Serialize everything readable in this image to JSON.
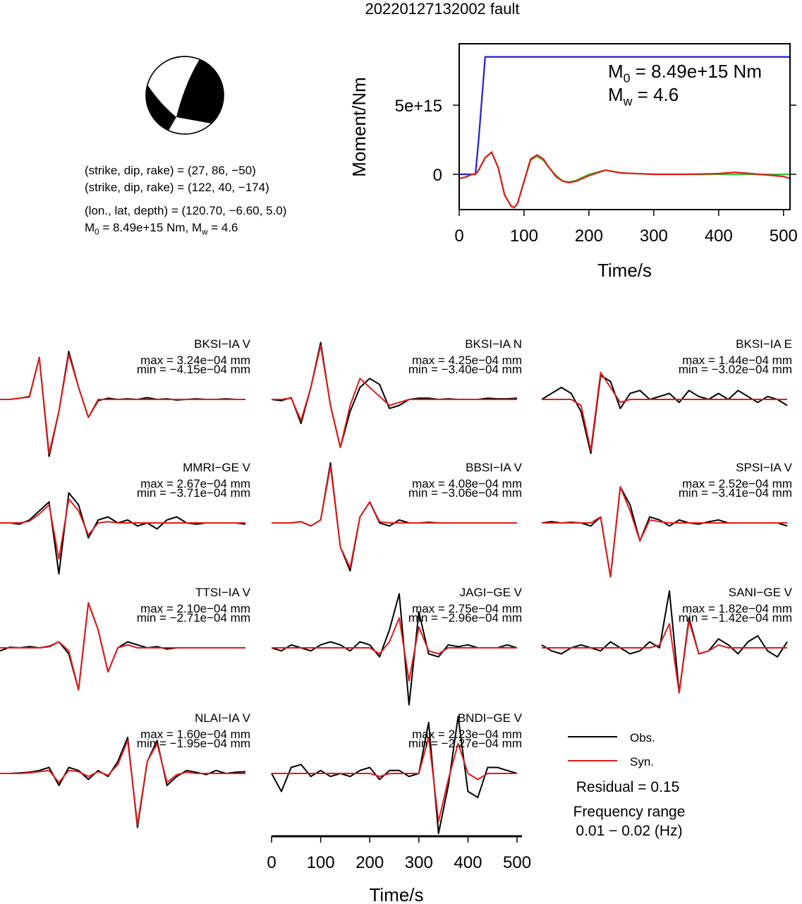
{
  "title": "20220127132002 fault",
  "mechanism": {
    "lines": [
      [
        "(strike, dip, rake) = (27, 86, −50)"
      ],
      [
        "(strike, dip, rake) = (122, 40, −174)"
      ],
      [
        "(lon., lat, depth) = (120.70, −6.60, 5.0)"
      ],
      [
        "M",
        "0",
        " = 8.49e+15 Nm, M",
        "w",
        " = 4.6"
      ]
    ]
  },
  "chart_data": [
    {
      "type": "line",
      "xlabel": "Time/s",
      "ylabel": "Moment/Nm",
      "annotations": [
        [
          "M",
          "0",
          " = 8.49e+15 Nm"
        ],
        [
          "M",
          "w",
          " = 4.6"
        ]
      ],
      "xlim": [
        0,
        510
      ],
      "ylim": [
        -2550000000000000.0,
        9440000000000000.0
      ],
      "xticks": [
        0,
        100,
        200,
        300,
        400,
        500
      ],
      "yticks": [
        0,
        {
          "value": 5000000000000000.0,
          "label": "5e+15"
        }
      ],
      "x": [
        0,
        10,
        20,
        25,
        30,
        40,
        50,
        60,
        70,
        80,
        85,
        90,
        100,
        110,
        120,
        130,
        140,
        150,
        160,
        170,
        180,
        200,
        225,
        250,
        300,
        350,
        400,
        425,
        450,
        500,
        510
      ],
      "series": [
        {
          "color": "#1f1fd6",
          "values": [
            0,
            0,
            0,
            0,
            2500000000000000.0,
            8490000000000000.0,
            8490000000000000.0,
            8490000000000000.0,
            8490000000000000.0,
            8490000000000000.0,
            8490000000000000.0,
            8490000000000000.0,
            8490000000000000.0,
            8490000000000000.0,
            8490000000000000.0,
            8490000000000000.0,
            8490000000000000.0,
            8490000000000000.0,
            8490000000000000.0,
            8490000000000000.0,
            8490000000000000.0,
            8490000000000000.0,
            8490000000000000.0,
            8490000000000000.0,
            8490000000000000.0,
            8490000000000000.0,
            8490000000000000.0,
            8490000000000000.0,
            8490000000000000.0,
            8490000000000000.0,
            8490000000000000.0
          ]
        },
        {
          "color": "#33cc33",
          "values": [
            -300000000000000.0,
            -200000000000000.0,
            0,
            0,
            300000000000000.0,
            1200000000000000.0,
            1600000000000000.0,
            500000000000000.0,
            -1500000000000000.0,
            -2300000000000000.0,
            -2400000000000000.0,
            -2100000000000000.0,
            -500000000000000.0,
            1000000000000000.0,
            1300000000000000.0,
            1000000000000000.0,
            400000000000000.0,
            -100000000000000.0,
            -500000000000000.0,
            -550000000000000.0,
            -450000000000000.0,
            0,
            300000000000000.0,
            100000000000000.0,
            0,
            0,
            0,
            0,
            0,
            0,
            0
          ]
        },
        {
          "color": "#e01b1b",
          "values": [
            -300000000000000.0,
            -200000000000000.0,
            0,
            0,
            300000000000000.0,
            1200000000000000.0,
            1600000000000000.0,
            500000000000000.0,
            -1500000000000000.0,
            -2300000000000000.0,
            -2400000000000000.0,
            -2100000000000000.0,
            -500000000000000.0,
            1100000000000000.0,
            1400000000000000.0,
            1100000000000000.0,
            400000000000000.0,
            -200000000000000.0,
            -500000000000000.0,
            -600000000000000.0,
            -500000000000000.0,
            -100000000000000.0,
            300000000000000.0,
            100000000000000.0,
            0,
            0,
            50000000000000.0,
            150000000000000.0,
            50000000000000.0,
            -150000000000000.0,
            -300000000000000.0
          ]
        }
      ]
    },
    {
      "type": "waveform",
      "xlabel": "Time/s",
      "xlim": [
        0,
        510
      ],
      "xticks": [
        0,
        100,
        200,
        300,
        400,
        500
      ],
      "time": [
        0,
        20,
        40,
        60,
        80,
        100,
        120,
        140,
        160,
        180,
        200,
        220,
        240,
        260,
        280,
        300,
        320,
        340,
        360,
        380,
        400,
        420,
        440,
        460,
        480,
        500
      ],
      "legend": [
        {
          "name": "Obs.",
          "color": "#000000"
        },
        {
          "name": "Syn.",
          "color": "#e01b1b"
        }
      ],
      "residual": "Residual = 0.15",
      "frequency": [
        "Frequency range",
        "0.01 − 0.02 (Hz)"
      ],
      "stations": [
        {
          "name": "BKSI−IA V",
          "max": "max = 3.24e−04 mm",
          "min": "min = −4.15e−04 mm",
          "obs": [
            0,
            0,
            0.02,
            0.05,
            0.7,
            -0.95,
            -0.2,
            0.8,
            0.2,
            -0.3,
            -0.02,
            0.02,
            0,
            0.01,
            0,
            0.03,
            0,
            0.01,
            -0.01,
            0,
            0.01,
            0,
            0,
            0.01,
            0,
            0
          ],
          "syn": [
            0,
            0,
            0.02,
            0.04,
            0.7,
            -0.9,
            -0.2,
            0.75,
            0.2,
            -0.3,
            0,
            0,
            0,
            0,
            0,
            0,
            0,
            0,
            0,
            0,
            0,
            0,
            0,
            0,
            0,
            0
          ]
        },
        {
          "name": "BKSI−IA N",
          "max": "max = 4.25e−04 mm",
          "min": "min = −3.40e−04 mm",
          "obs": [
            0,
            -0.02,
            0.03,
            -0.4,
            0.2,
            0.95,
            -0.1,
            -0.8,
            -0.2,
            0.2,
            0.35,
            0.25,
            -0.15,
            -0.1,
            0,
            0.02,
            0.02,
            0,
            0.01,
            0,
            0,
            0,
            0.02,
            0.01,
            0.01,
            0.02
          ],
          "syn": [
            0,
            0,
            0.02,
            -0.35,
            0.2,
            0.9,
            -0.1,
            -0.8,
            -0.1,
            0.35,
            0.2,
            0.05,
            -0.1,
            -0.05,
            0,
            0,
            0,
            0,
            0,
            0,
            0,
            0,
            0,
            0,
            0,
            0
          ]
        },
        {
          "name": "BKSI−IA E",
          "max": "max = 1.44e−04 mm",
          "min": "min = −3.02e−04 mm",
          "obs": [
            0,
            0.1,
            0.2,
            0.1,
            -0.2,
            -0.9,
            0.4,
            0.3,
            -0.15,
            0.1,
            0.15,
            0,
            0.05,
            0.1,
            -0.05,
            0.15,
            0.05,
            0,
            0.1,
            0,
            0.15,
            0.05,
            -0.05,
            0.05,
            0,
            -0.1
          ],
          "syn": [
            0,
            0,
            0,
            0,
            -0.1,
            -0.85,
            0.45,
            0.2,
            -0.05,
            0,
            0,
            0,
            0,
            0,
            0,
            0,
            0,
            0,
            0,
            0,
            0,
            0,
            0,
            0,
            0,
            0
          ]
        },
        {
          "name": "MMRI−GE V",
          "max": "max = 2.67e−04 mm",
          "min": "min = −3.71e−04 mm",
          "obs": [
            0,
            0,
            -0.02,
            0.05,
            0.2,
            0.35,
            -0.85,
            0.5,
            0.3,
            -0.25,
            0.05,
            0.1,
            0,
            0.05,
            -0.05,
            0,
            -0.1,
            0.05,
            0.1,
            0,
            -0.02,
            0,
            0,
            0,
            0,
            -0.02
          ],
          "syn": [
            0,
            0,
            0,
            0.03,
            0.15,
            0.3,
            -0.6,
            0.4,
            0.2,
            -0.2,
            0,
            0.02,
            0,
            0,
            0,
            0,
            0,
            0,
            0,
            0,
            0,
            0,
            0,
            0,
            0,
            0
          ]
        },
        {
          "name": "BBSI−IA V",
          "max": "max = 4.08e−04 mm",
          "min": "min = −3.06e−04 mm",
          "obs": [
            0,
            0,
            0,
            0.02,
            -0.05,
            0.05,
            1,
            -0.4,
            -0.8,
            0.1,
            0.35,
            0,
            -0.05,
            0.05,
            0,
            0,
            0.01,
            0,
            0,
            0,
            0,
            0,
            0,
            0,
            0,
            0
          ],
          "syn": [
            0,
            0,
            0,
            0.02,
            -0.05,
            0.05,
            0.95,
            -0.4,
            -0.75,
            0.1,
            0.35,
            0.02,
            0,
            0,
            0,
            0,
            0,
            0,
            0,
            0,
            0,
            0,
            0,
            0,
            0,
            0
          ]
        },
        {
          "name": "SPSI−IA V",
          "max": "max = 2.52e−04 mm",
          "min": "min = −3.41e−04 mm",
          "obs": [
            0,
            0.02,
            0,
            0.01,
            0,
            -0.05,
            0.1,
            -0.9,
            0.6,
            0.3,
            -0.3,
            0.1,
            0.05,
            -0.05,
            0.05,
            0,
            -0.02,
            0.02,
            0.05,
            0,
            0,
            0,
            0,
            0,
            0,
            -0.05
          ],
          "syn": [
            0,
            0,
            0,
            0,
            0,
            0,
            0.1,
            -0.9,
            0.6,
            0.2,
            -0.3,
            0.05,
            0.02,
            0,
            0,
            0,
            0,
            0,
            0,
            0,
            0,
            0,
            0,
            0,
            0,
            0
          ]
        },
        {
          "name": "TTSI−IA V",
          "max": "max = 2.10e−04 mm",
          "min": "min = −2.71e−04 mm",
          "obs": [
            -0.05,
            0.01,
            0,
            0.02,
            0,
            0.02,
            0.1,
            -0.1,
            -0.7,
            0.75,
            0.3,
            -0.4,
            0,
            0.1,
            0.05,
            0,
            0.02,
            -0.02,
            0,
            0,
            0,
            0,
            0,
            0,
            0,
            0
          ],
          "syn": [
            0,
            0,
            0,
            0,
            0,
            0.03,
            0.1,
            -0.05,
            -0.7,
            0.75,
            0.3,
            -0.4,
            0,
            0.05,
            0,
            0,
            0,
            0,
            0,
            0,
            0,
            0,
            0,
            0,
            0,
            0
          ]
        },
        {
          "name": "JAGI−GE V",
          "max": "max = 2.75e−04 mm",
          "min": "min = −2.96e−04 mm",
          "obs": [
            0,
            -0.05,
            0.05,
            0,
            -0.05,
            0.05,
            0.1,
            0.05,
            -0.05,
            0.1,
            0.05,
            -0.15,
            0.3,
            0.9,
            -0.95,
            0.6,
            -0.1,
            -0.15,
            0.05,
            0.02,
            0.05,
            0,
            0,
            0,
            0.05,
            0
          ],
          "syn": [
            0,
            0,
            0,
            0,
            0,
            0,
            0,
            0,
            0,
            0,
            0,
            -0.1,
            0.1,
            0.5,
            -0.55,
            0.35,
            -0.05,
            -0.1,
            0,
            0,
            0,
            0,
            0,
            0,
            0,
            0
          ]
        },
        {
          "name": "SANI−GE V",
          "max": "max = 1.82e−04 mm",
          "min": "min = −1.42e−04 mm",
          "obs": [
            0.05,
            -0.05,
            -0.1,
            0,
            0.05,
            0,
            -0.05,
            0.1,
            0,
            -0.1,
            -0.05,
            0.1,
            0,
            0.95,
            -0.75,
            0.5,
            -0.1,
            -0.05,
            0.15,
            0.05,
            -0.1,
            0.1,
            0.2,
            -0.05,
            -0.15,
            0.1
          ],
          "syn": [
            0,
            0,
            0,
            0,
            0,
            0,
            0,
            0,
            0,
            0,
            0,
            0,
            0.05,
            0.4,
            -0.75,
            0.45,
            -0.1,
            -0.05,
            0.05,
            0,
            0,
            0,
            0,
            0,
            0,
            0
          ]
        },
        {
          "name": "NLAI−IA V",
          "max": "max = 1.60e−04 mm",
          "min": "min = −1.95e−04 mm",
          "obs": [
            0,
            0,
            0.01,
            0.02,
            0.05,
            0.1,
            -0.2,
            0.1,
            0.05,
            -0.1,
            0.05,
            -0.05,
            0.2,
            0.6,
            -0.9,
            0.2,
            0.55,
            -0.2,
            -0.05,
            0.05,
            0.02,
            -0.02,
            0.05,
            0,
            0.02,
            0.03
          ],
          "syn": [
            0,
            0,
            0,
            0.01,
            0.03,
            0.05,
            -0.15,
            0.05,
            0.03,
            -0.05,
            0.03,
            -0.03,
            0.15,
            0.55,
            -0.85,
            0.2,
            0.5,
            -0.15,
            -0.02,
            0.02,
            0,
            0,
            0,
            0,
            0,
            0
          ]
        },
        {
          "name": "BNDI−GE V",
          "max": "max = 2.23e−04 mm",
          "min": "min = −2.27e−04 mm",
          "obs": [
            0,
            -0.3,
            0.1,
            0.15,
            -0.05,
            0.05,
            -0.05,
            0,
            -0.05,
            0.05,
            0.1,
            -0.1,
            0.05,
            0.05,
            -0.05,
            0,
            0.85,
            -1,
            -0.2,
            0.95,
            -0.3,
            -0.4,
            0.1,
            0.1,
            0.05,
            0
          ],
          "syn": [
            0,
            0,
            0,
            0,
            0,
            0,
            0,
            0,
            0,
            0,
            0,
            -0.05,
            0,
            0,
            0,
            0,
            0.6,
            -0.8,
            -0.1,
            0.5,
            0,
            -0.1,
            0,
            0,
            0,
            0
          ]
        }
      ]
    }
  ]
}
